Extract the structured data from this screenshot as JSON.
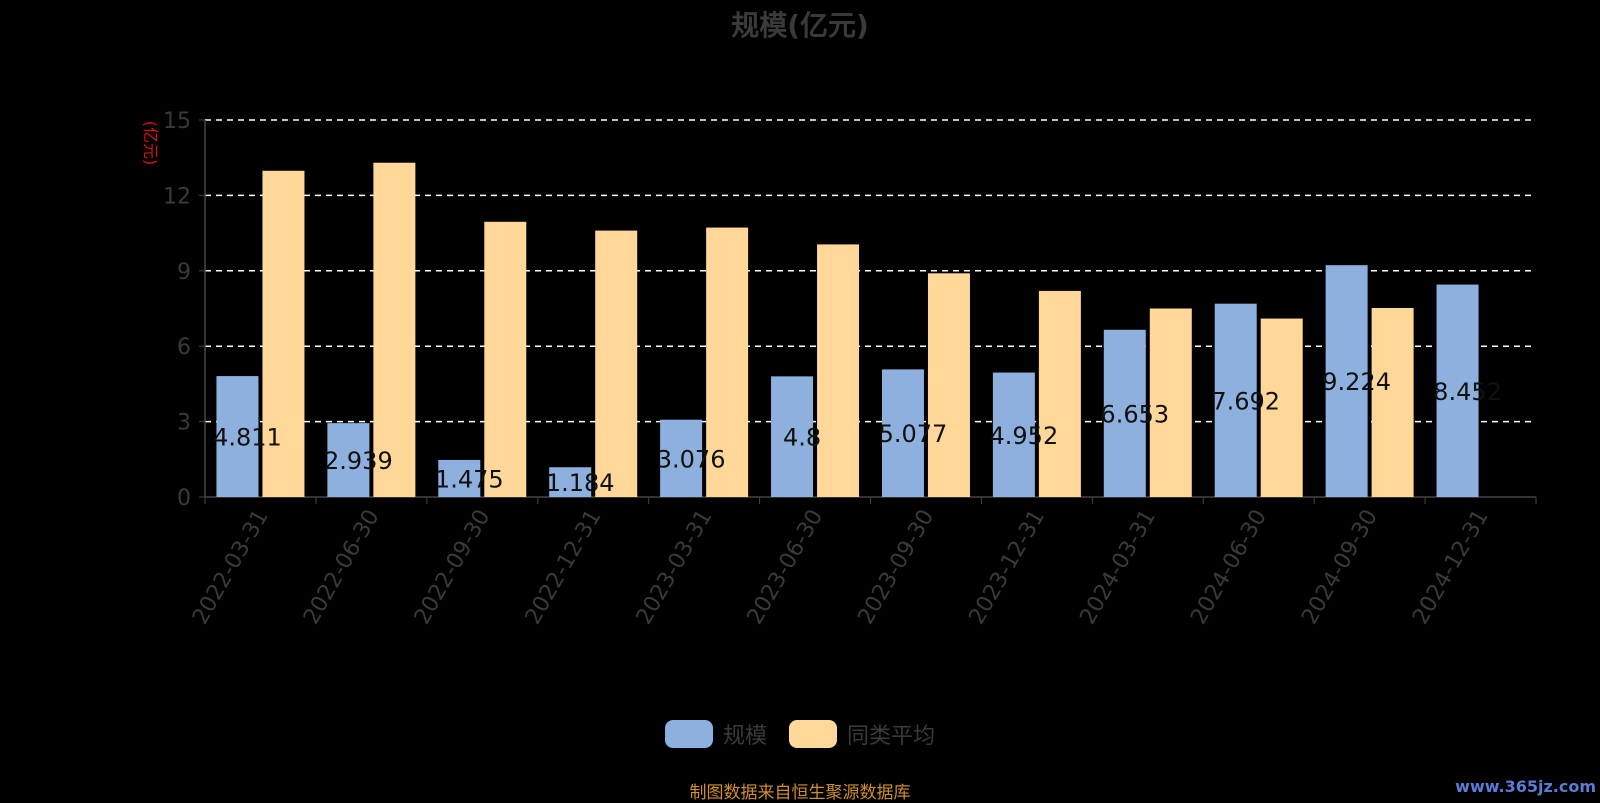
{
  "chart_data": {
    "type": "bar",
    "title": "规模(亿元)",
    "ylabel": "(亿元)",
    "ylim": [
      0,
      15
    ],
    "yticks": [
      0,
      3,
      6,
      9,
      12,
      15
    ],
    "grid": true,
    "legend_position": "bottom",
    "categories": [
      "2022-03-31",
      "2022-06-30",
      "2022-09-30",
      "2022-12-31",
      "2023-03-31",
      "2023-06-30",
      "2023-09-30",
      "2023-12-31",
      "2024-03-31",
      "2024-06-30",
      "2024-09-30",
      "2024-12-31"
    ],
    "series": [
      {
        "name": "规模",
        "color": "#8eb0de",
        "values": [
          4.811,
          2.939,
          1.475,
          1.184,
          3.076,
          4.8,
          5.077,
          4.952,
          6.653,
          7.692,
          9.224,
          8.452
        ],
        "labels": [
          "4.811",
          "2.939",
          "1.475",
          "1.184",
          "3.076",
          "4.8",
          "5.077",
          "4.952",
          "6.653",
          "7.692",
          "9.224",
          "8.452"
        ]
      },
      {
        "name": "同类平均",
        "color": "#ffd899",
        "values": [
          12.98,
          13.3,
          10.95,
          10.6,
          10.72,
          10.05,
          8.9,
          8.2,
          7.5,
          7.1,
          7.52,
          null
        ]
      }
    ]
  },
  "source_note": "制图数据来自恒生聚源数据库",
  "watermark": "www.365jz.com"
}
